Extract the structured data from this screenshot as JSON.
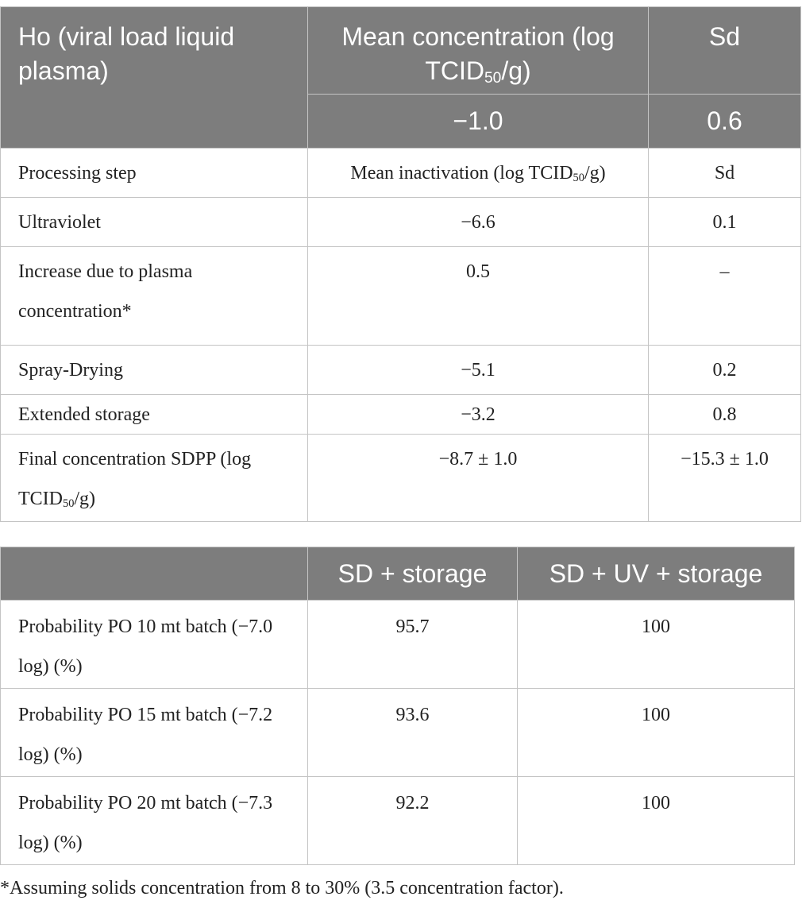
{
  "table1": {
    "header": {
      "row1": [
        [
          "Ho (viral load liquid plasma)"
        ],
        [
          "Mean concentration (log TCID",
          "50",
          "/g)"
        ],
        [
          "Sd"
        ]
      ],
      "row2": [
        "−1.0",
        "0.6"
      ]
    },
    "rows": [
      [
        [
          "Processing step"
        ],
        [
          "Mean inactivation (log TCID",
          "50",
          "/g)"
        ],
        [
          "Sd"
        ]
      ],
      [
        [
          "Ultraviolet"
        ],
        [
          "−6.6"
        ],
        [
          "0.1"
        ]
      ],
      [
        [
          "Increase due to plasma concentration*"
        ],
        [
          "0.5"
        ],
        [
          "–"
        ]
      ],
      [
        [
          "Spray-Drying"
        ],
        [
          "−5.1"
        ],
        [
          "0.2"
        ]
      ],
      [
        [
          "Extended storage"
        ],
        [
          "−3.2"
        ],
        [
          "0.8"
        ]
      ],
      [
        [
          "Final concentration SDPP (log TCID",
          "50",
          "/g)"
        ],
        [
          "−8.7 ± 1.0"
        ],
        [
          "−15.3 ± 1.0"
        ]
      ]
    ]
  },
  "table2": {
    "header": [
      "SD + storage",
      "SD + UV + storage"
    ],
    "rows": [
      {
        "label": "Probability PO 10 mt batch (−7.0 log) (%)",
        "values": [
          95.7,
          100
        ]
      },
      {
        "label": "Probability PO 15 mt batch (−7.2 log) (%)",
        "values": [
          93.6,
          100
        ]
      },
      {
        "label": "Probability PO 20 mt batch (−7.3 log) (%)",
        "values": [
          92.2,
          100
        ]
      }
    ]
  },
  "footnote": "*Assuming solids concentration from 8 to 30% (3.5 concentration factor)."
}
